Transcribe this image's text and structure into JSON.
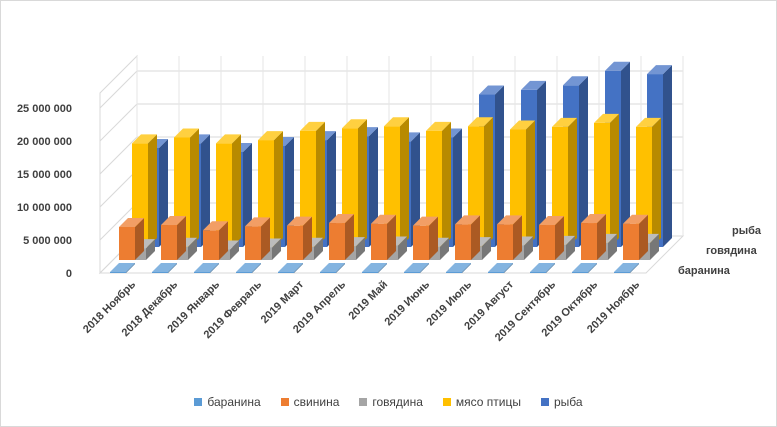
{
  "chart_data": {
    "type": "bar",
    "subtype": "3d-clustered",
    "title": "",
    "categories": [
      "2018 Ноябрь",
      "2018 Декабрь",
      "2019 Январь",
      "2019 Февраль",
      "2019 Март",
      "2019 Апрель",
      "2019 Май",
      "2019 Июнь",
      "2019 Июль",
      "2019 Август",
      "2019 Сентябрь",
      "2019 Октябрь",
      "2019 Ноябрь"
    ],
    "depth_labels": [
      "рыба",
      "говядина",
      "баранина"
    ],
    "y_ticks": [
      "0",
      "5 000 000",
      "10 000 000",
      "15 000 000",
      "20 000 000",
      "25 000 000"
    ],
    "ylim": [
      0,
      25000000
    ],
    "grid": true,
    "legend_position": "bottom",
    "series": [
      {
        "name": "баранина",
        "color": "#5b9bd5",
        "values": [
          150000,
          150000,
          150000,
          150000,
          150000,
          150000,
          150000,
          150000,
          150000,
          150000,
          150000,
          150000,
          150000
        ]
      },
      {
        "name": "свинина",
        "color": "#ed7d31",
        "values": [
          5000000,
          5300000,
          4500000,
          5100000,
          5200000,
          5600000,
          5500000,
          5200000,
          5400000,
          5400000,
          5300000,
          5600000,
          5500000
        ]
      },
      {
        "name": "говядина",
        "color": "#a5a5a5",
        "values": [
          1800000,
          2000000,
          1600000,
          1900000,
          2000000,
          2100000,
          2200000,
          2000000,
          2100000,
          2200000,
          2300000,
          2600000,
          2600000
        ]
      },
      {
        "name": "мясо птицы",
        "color": "#ffc000",
        "values": [
          15700000,
          16600000,
          15700000,
          16200000,
          17600000,
          18000000,
          18300000,
          17600000,
          18300000,
          17800000,
          18200000,
          18800000,
          18200000
        ]
      },
      {
        "name": "рыба",
        "color": "#4472c4",
        "values": [
          15000000,
          15700000,
          14400000,
          15300000,
          16200000,
          16800000,
          16000000,
          16600000,
          23100000,
          23800000,
          24500000,
          26700000,
          26200000
        ]
      }
    ]
  }
}
